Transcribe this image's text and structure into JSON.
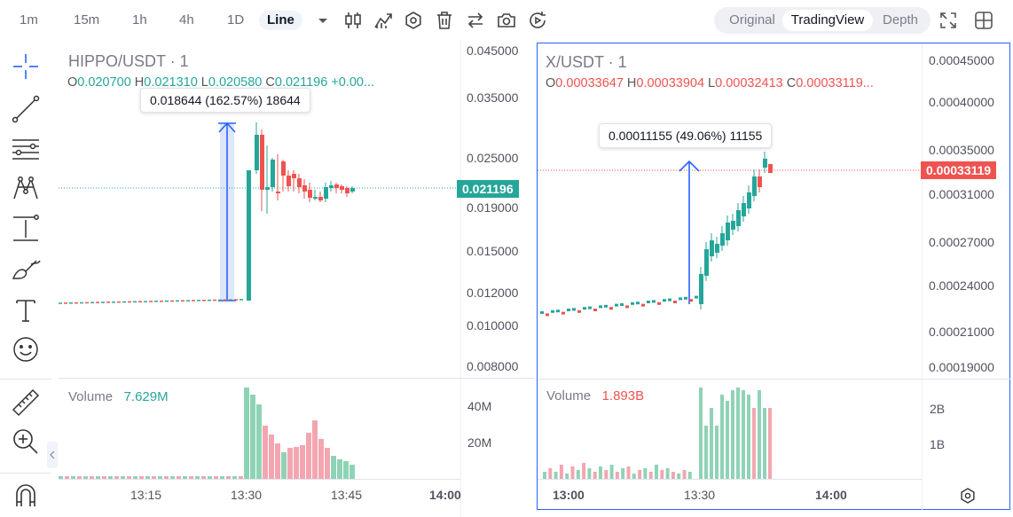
{
  "toolbar": {
    "timeframes": [
      "1m",
      "15m",
      "1h",
      "4h",
      "1D"
    ],
    "chart_type": "Line",
    "icons": [
      "chevron-down-icon",
      "candlestick-icon",
      "indicators-icon",
      "settings-icon",
      "trash-icon",
      "compare-icon",
      "camera-icon",
      "replay-icon"
    ],
    "views": [
      "Original",
      "TradingView",
      "Depth"
    ],
    "active_view": "TradingView",
    "right_icons": [
      "fullscreen-icon",
      "layout-grid-icon"
    ]
  },
  "left_tools": [
    "crosshair-icon",
    "trendline-icon",
    "horizontal-lines-icon",
    "pattern-icon",
    "measure-icon",
    "brush-icon",
    "text-icon",
    "emoji-icon",
    "ruler-icon",
    "zoom-in-icon",
    "magnet-icon"
  ],
  "colors": {
    "up": "#26a69a",
    "down": "#ef5350",
    "up_light": "#8fd3b6",
    "down_light": "#f3a6b0",
    "accent": "#2962ff"
  },
  "left_chart": {
    "symbol": "HIPPO/USDT · 1",
    "ohlc": {
      "o_label": "O",
      "o": "0.020700",
      "h_label": "H",
      "h": "0.021310",
      "l_label": "L",
      "l": "0.020580",
      "c_label": "C",
      "c": "0.021196",
      "chg": "+0.00..."
    },
    "tooltip": "0.018644 (162.57%) 18644",
    "last_price": "0.021196",
    "price_axis": [
      "0.045000",
      "0.035000",
      "0.025000",
      "0.019000",
      "0.015000",
      "0.012000",
      "0.010000",
      "0.008000"
    ],
    "volume_label": "Volume",
    "volume_value": "7.629M",
    "volume_axis": [
      "40M",
      "20M"
    ],
    "time_axis": [
      "13:15",
      "13:30",
      "13:45",
      "14:00"
    ]
  },
  "right_chart": {
    "symbol": "X/USDT · 1",
    "ohlc": {
      "o_label": "O",
      "o": "0.00033647",
      "h_label": "H",
      "h": "0.00033904",
      "l_label": "L",
      "l": "0.00032413",
      "c_label": "C",
      "c": "0.00033119..."
    },
    "tooltip": "0.00011155 (49.06%) 11155",
    "last_price": "0.00033119",
    "price_axis": [
      "0.00045000",
      "0.00040000",
      "0.00035000",
      "0.00031000",
      "0.00027000",
      "0.00024000",
      "0.00021000",
      "0.00019000"
    ],
    "volume_label": "Volume",
    "volume_value": "1.893B",
    "volume_axis": [
      "2B",
      "1B"
    ],
    "time_axis": [
      "13:00",
      "13:30",
      "14:00"
    ]
  }
}
